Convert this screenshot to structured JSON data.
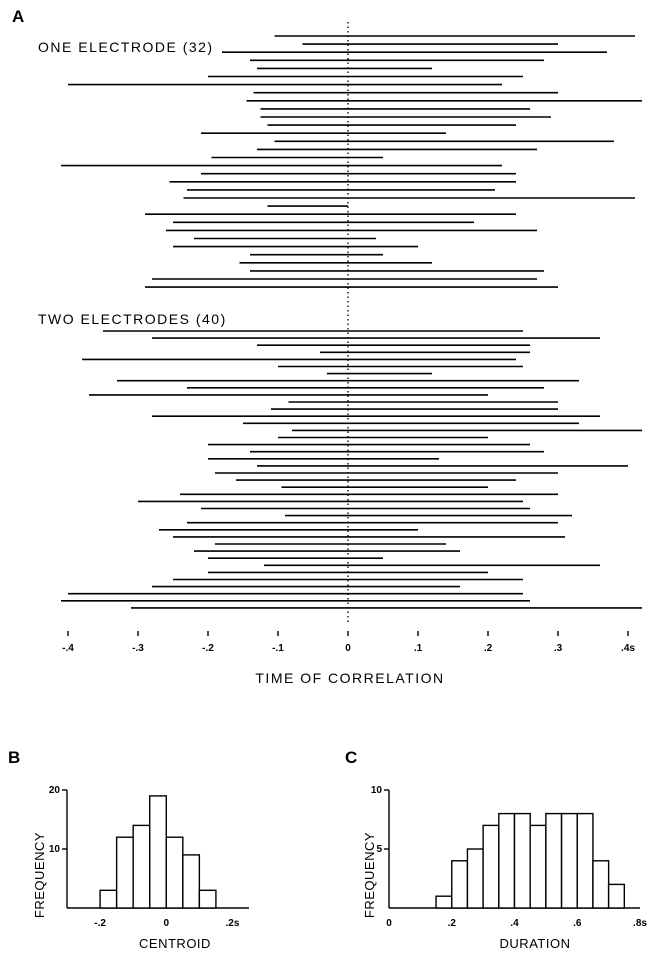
{
  "panel_labels": {
    "a": "A",
    "b": "B",
    "c": "C"
  },
  "chart_data": [
    {
      "type": "interval",
      "panel": "A",
      "xlabel": "TIME OF CORRELATION",
      "xlim": [
        -0.4,
        0.42
      ],
      "x_ticks": [
        -0.4,
        -0.3,
        -0.2,
        -0.1,
        0,
        0.1,
        0.2,
        0.3,
        0.4
      ],
      "x_tick_labels": [
        "-.4",
        "-.3",
        "-.2",
        "-.1",
        "0",
        ".1",
        ".2",
        ".3",
        ".4s"
      ],
      "reference_line_x": 0,
      "groups": [
        {
          "label": "ONE ELECTRODE (32)",
          "intervals": [
            [
              -0.105,
              0.41
            ],
            [
              -0.065,
              0.3
            ],
            [
              -0.18,
              0.37
            ],
            [
              -0.14,
              0.28
            ],
            [
              -0.13,
              0.12
            ],
            [
              -0.2,
              0.25
            ],
            [
              -0.4,
              0.22
            ],
            [
              -0.135,
              0.3
            ],
            [
              -0.145,
              0.42
            ],
            [
              -0.125,
              0.26
            ],
            [
              -0.125,
              0.29
            ],
            [
              -0.115,
              0.24
            ],
            [
              -0.21,
              0.14
            ],
            [
              -0.105,
              0.38
            ],
            [
              -0.13,
              0.27
            ],
            [
              -0.195,
              0.05
            ],
            [
              -0.41,
              0.22
            ],
            [
              -0.21,
              0.24
            ],
            [
              -0.255,
              0.24
            ],
            [
              -0.23,
              0.21
            ],
            [
              -0.235,
              0.41
            ],
            [
              -0.115,
              0.0
            ],
            [
              -0.29,
              0.24
            ],
            [
              -0.25,
              0.18
            ],
            [
              -0.26,
              0.27
            ],
            [
              -0.22,
              0.04
            ],
            [
              -0.25,
              0.1
            ],
            [
              -0.14,
              0.05
            ],
            [
              -0.155,
              0.12
            ],
            [
              -0.14,
              0.28
            ],
            [
              -0.28,
              0.27
            ],
            [
              -0.29,
              0.3
            ]
          ]
        },
        {
          "label": "TWO ELECTRODES (40)",
          "intervals": [
            [
              -0.35,
              0.25
            ],
            [
              -0.28,
              0.36
            ],
            [
              -0.13,
              0.26
            ],
            [
              -0.04,
              0.26
            ],
            [
              -0.38,
              0.24
            ],
            [
              -0.1,
              0.25
            ],
            [
              -0.03,
              0.12
            ],
            [
              -0.33,
              0.33
            ],
            [
              -0.23,
              0.28
            ],
            [
              -0.37,
              0.2
            ],
            [
              -0.085,
              0.3
            ],
            [
              -0.11,
              0.3
            ],
            [
              -0.28,
              0.36
            ],
            [
              -0.15,
              0.33
            ],
            [
              -0.08,
              0.42
            ],
            [
              -0.1,
              0.2
            ],
            [
              -0.2,
              0.26
            ],
            [
              -0.14,
              0.28
            ],
            [
              -0.2,
              0.13
            ],
            [
              -0.13,
              0.4
            ],
            [
              -0.19,
              0.3
            ],
            [
              -0.16,
              0.24
            ],
            [
              -0.095,
              0.2
            ],
            [
              -0.24,
              0.3
            ],
            [
              -0.3,
              0.25
            ],
            [
              -0.21,
              0.26
            ],
            [
              -0.09,
              0.32
            ],
            [
              -0.23,
              0.3
            ],
            [
              -0.27,
              0.1
            ],
            [
              -0.25,
              0.31
            ],
            [
              -0.19,
              0.14
            ],
            [
              -0.22,
              0.16
            ],
            [
              -0.2,
              0.05
            ],
            [
              -0.12,
              0.36
            ],
            [
              -0.2,
              0.2
            ],
            [
              -0.25,
              0.25
            ],
            [
              -0.28,
              0.16
            ],
            [
              -0.4,
              0.25
            ],
            [
              -0.41,
              0.26
            ],
            [
              -0.31,
              0.42
            ]
          ]
        }
      ]
    },
    {
      "type": "bar",
      "panel": "B",
      "xlabel": "CENTROID",
      "ylabel": "FREQUENCY",
      "xlim": [
        -0.3,
        0.25
      ],
      "ylim": [
        0,
        20
      ],
      "x_ticks": [
        -0.2,
        0,
        0.2
      ],
      "x_tick_labels": [
        "-.2",
        "0",
        ".2s"
      ],
      "y_ticks": [
        10,
        20
      ],
      "y_tick_labels": [
        "10",
        "20"
      ],
      "bin_width": 0.05,
      "bins_left": [
        -0.2,
        -0.15,
        -0.1,
        -0.05,
        0.0,
        0.05,
        0.1,
        0.15
      ],
      "values": [
        3,
        12,
        14,
        19,
        12,
        9,
        3,
        0
      ]
    },
    {
      "type": "bar",
      "panel": "C",
      "xlabel": "DURATION",
      "ylabel": "FREQUENCY",
      "xlim": [
        0,
        0.8
      ],
      "ylim": [
        0,
        10
      ],
      "x_ticks": [
        0,
        0.2,
        0.4,
        0.6,
        0.8
      ],
      "x_tick_labels": [
        "0",
        ".2",
        ".4",
        ".6",
        ".8s"
      ],
      "y_ticks": [
        5,
        10
      ],
      "y_tick_labels": [
        "5",
        "10"
      ],
      "bin_width": 0.05,
      "bins_left": [
        0.15,
        0.2,
        0.25,
        0.3,
        0.35,
        0.4,
        0.45,
        0.5,
        0.55,
        0.6,
        0.65,
        0.7
      ],
      "values": [
        1,
        4,
        5,
        7,
        8,
        8,
        7,
        8,
        8,
        8,
        4,
        2
      ]
    }
  ]
}
